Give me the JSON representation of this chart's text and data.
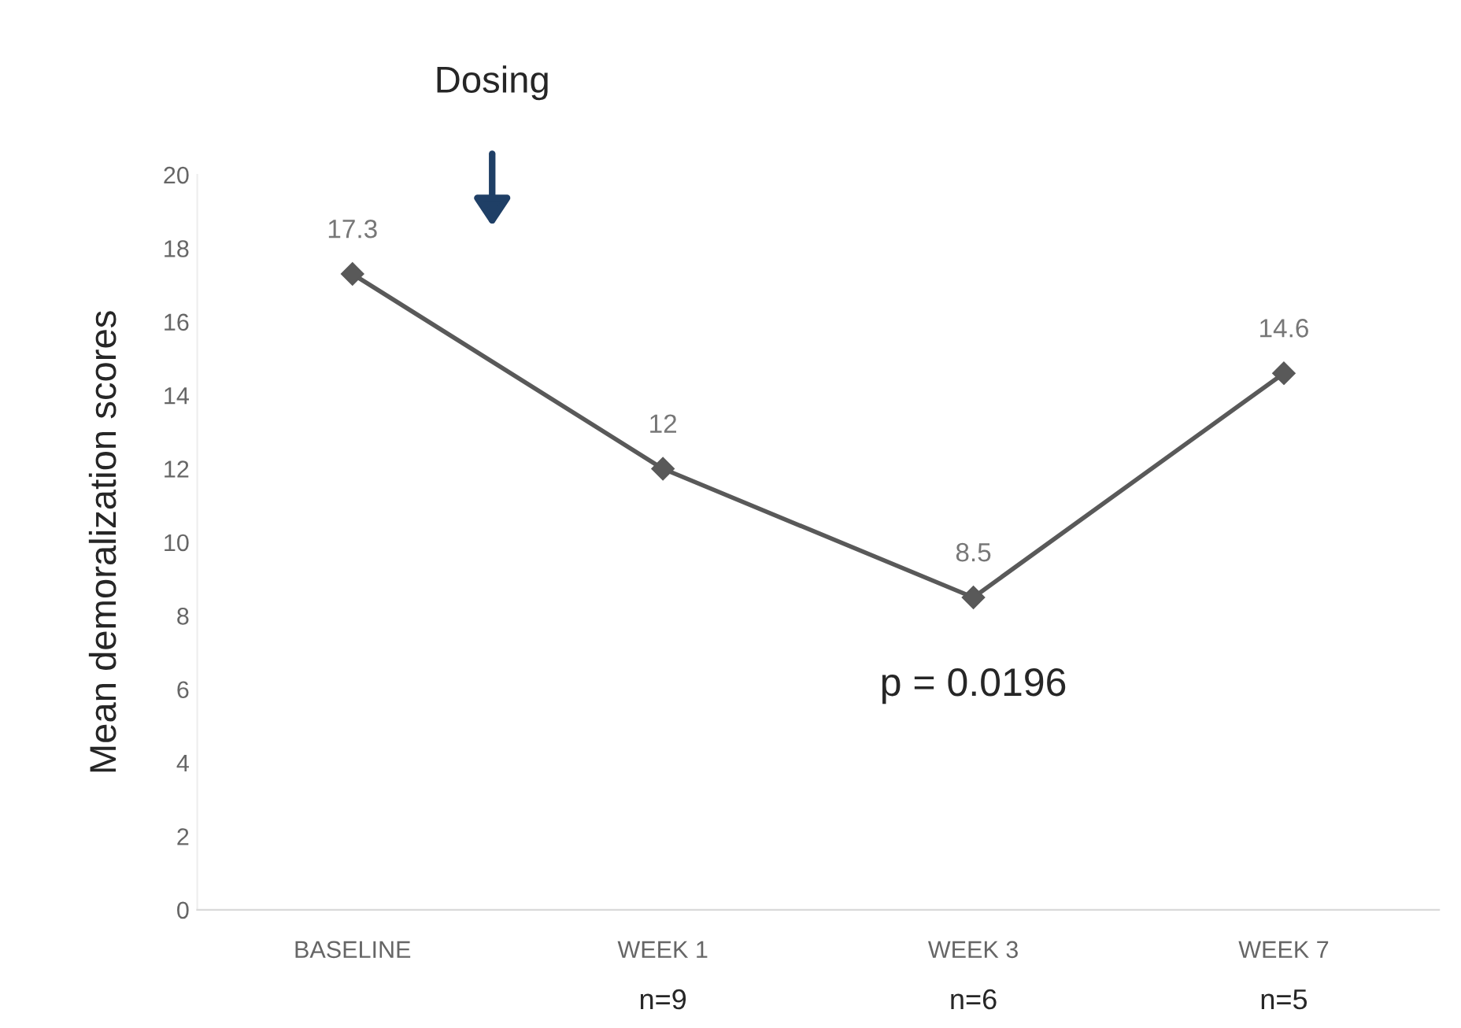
{
  "chart_data": {
    "type": "line",
    "ylabel": "Mean demoralization scores",
    "categories": [
      "BASELINE",
      "WEEK 1",
      "WEEK 3",
      "WEEK 7"
    ],
    "series": [
      {
        "color": "#595959",
        "values": [
          17.3,
          12,
          8.5,
          14.6
        ]
      }
    ],
    "ylim": [
      0,
      20
    ],
    "yticks": [
      0,
      2,
      4,
      6,
      8,
      10,
      12,
      14,
      16,
      18,
      20
    ],
    "marker": "diamond",
    "line_style": "solid",
    "data_labels": true,
    "grid": false,
    "legend": false,
    "annotations": [
      "Dosing",
      "p = 0.0196",
      "n=9",
      "n=6",
      "n=5"
    ]
  }
}
